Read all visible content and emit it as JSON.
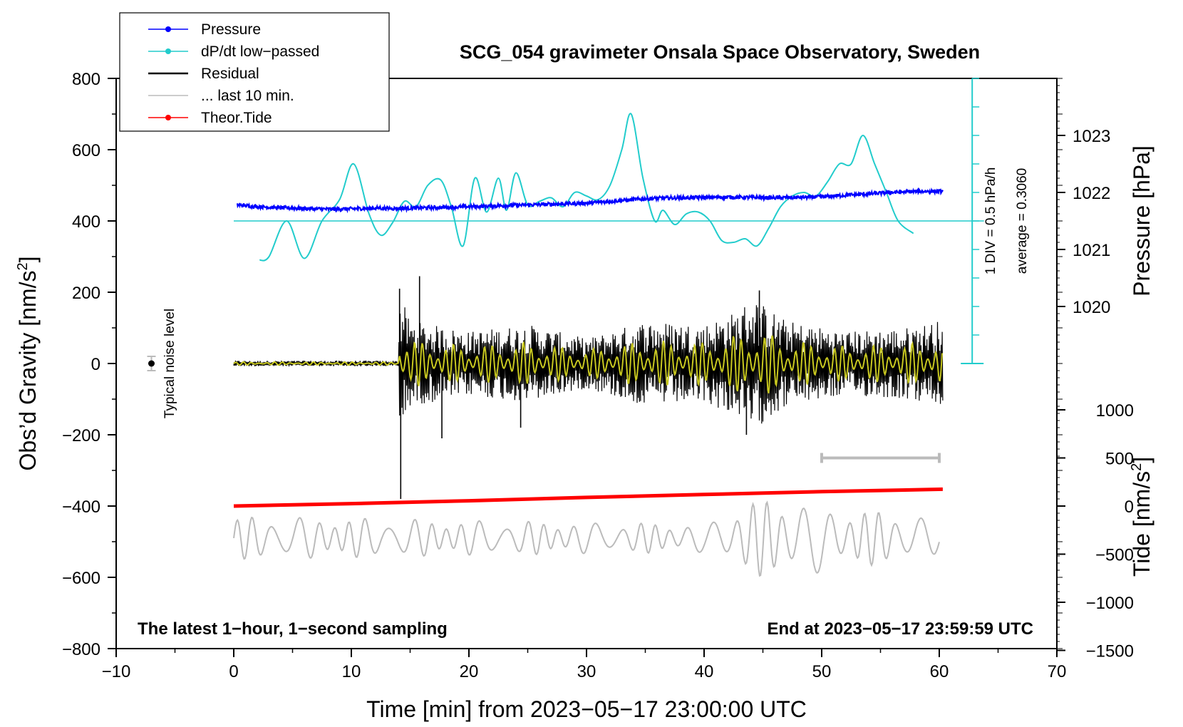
{
  "chart_data": {
    "type": "line",
    "title": "SCG_054 gravimeter Onsala Space Observatory, Sweden",
    "xlabel": "Time [min] from 2023−05−17 23:00:00 UTC",
    "ylabel_main": "Obs’d Gravity [nm/s",
    "ylabel_main_sup": "2",
    "ylabel_main_close": "]",
    "ylabel_pressure": "Pressure [hPa]",
    "ylabel_tide": "Tide [nm/s",
    "ylabel_tide_sup": "2",
    "ylabel_tide_close": "]",
    "xlim": [
      -10,
      70
    ],
    "ylim": [
      -800,
      800
    ],
    "x_ticks": [
      -10,
      0,
      10,
      20,
      30,
      40,
      50,
      60,
      70
    ],
    "x_tick_labels": [
      "−10",
      "0",
      "10",
      "20",
      "30",
      "40",
      "50",
      "60",
      "70"
    ],
    "y_ticks": [
      -800,
      -600,
      -400,
      -200,
      0,
      200,
      400,
      600,
      800
    ],
    "y_tick_labels": [
      "−800",
      "−600",
      "−400",
      "−200",
      "0",
      "200",
      "400",
      "600",
      "800"
    ],
    "pressure_ticks": [
      1020,
      1021,
      1022,
      1023
    ],
    "pressure_tick_labels": [
      "1020",
      "1021",
      "1022",
      "1023"
    ],
    "pressure_ref_gravity": {
      "hpa_1020": 160,
      "hpa_per_div": 160
    },
    "tide_ticks": [
      -1500,
      -1000,
      -500,
      0,
      500,
      1000
    ],
    "tide_tick_labels": [
      "−1500",
      "−1000",
      "−500",
      "0",
      "500",
      "1000"
    ],
    "tide_ref_gravity": {
      "tide_zero": -400,
      "gravity_per_500": 135
    },
    "dpdt_scale_label": "1 DIV = 0.5 hPa/h",
    "dpdt_average_label": "average = 0.3060",
    "dpdt_baseline_gravity": 400,
    "noise_label": "Typical noise level",
    "noise_point": {
      "x": -7,
      "y": 0,
      "err": 20
    },
    "last10_bar": {
      "x_start": 50,
      "x_end": 60,
      "tide_value": 500
    },
    "bottom_left_note": "The latest 1−hour, 1−second sampling",
    "bottom_right_note": "End at 2023−05−17 23:59:59 UTC",
    "legend": [
      {
        "label": "Pressure",
        "color": "#0000ff",
        "marker": true
      },
      {
        "label": "dP/dt low−passed",
        "color": "#22cccc",
        "marker": true
      },
      {
        "label": "Residual",
        "color": "#000000",
        "marker": false
      },
      {
        "label": "... last 10 min.",
        "color": "#bbbbbb",
        "marker": false
      },
      {
        "label": "Theor.Tide",
        "color": "#ff0000",
        "marker": true
      }
    ],
    "series": [
      {
        "name": "Pressure",
        "color": "#0000ff",
        "unit": "gravity-axis",
        "x": [
          0.3,
          2,
          4,
          6,
          8,
          10,
          12,
          14,
          16,
          18,
          20,
          22,
          24,
          26,
          28,
          30,
          32,
          34,
          36,
          38,
          40,
          42,
          44,
          46,
          48,
          50,
          52,
          54,
          56,
          58,
          60.3
        ],
        "values": [
          445,
          440,
          437,
          435,
          433,
          434,
          436,
          435,
          437,
          438,
          440,
          442,
          444,
          446,
          448,
          450,
          455,
          460,
          464,
          465,
          466,
          467,
          466,
          465,
          466,
          468,
          472,
          476,
          480,
          483,
          483
        ]
      },
      {
        "name": "dP/dt low-passed",
        "color": "#22cccc",
        "unit": "gravity-axis",
        "x": [
          2.2,
          3,
          4.5,
          6,
          7.5,
          9,
          10.2,
          11.5,
          12.5,
          13.5,
          14.5,
          15.5,
          16.5,
          17.6,
          18.5,
          19.5,
          20.5,
          21.5,
          22.5,
          23.2,
          24,
          25,
          26,
          27,
          28,
          29,
          30,
          31,
          32,
          33,
          33.8,
          34.8,
          35.8,
          36.5,
          37.5,
          38.5,
          39.5,
          40.5,
          41.5,
          42.5,
          43.5,
          44.5,
          45.5,
          46.5,
          47.5,
          48.5,
          49.5,
          50.5,
          51.5,
          52.5,
          53.5,
          54.5,
          55.5,
          56.5,
          57.8
        ],
        "values": [
          290,
          300,
          400,
          295,
          400,
          460,
          560,
          420,
          360,
          395,
          455,
          440,
          500,
          515,
          440,
          330,
          520,
          425,
          520,
          430,
          535,
          445,
          455,
          465,
          440,
          480,
          470,
          460,
          500,
          600,
          700,
          520,
          400,
          430,
          390,
          420,
          425,
          400,
          345,
          340,
          350,
          330,
          380,
          440,
          470,
          480,
          470,
          510,
          560,
          560,
          640,
          560,
          480,
          400,
          365
        ]
      },
      {
        "name": "Residual",
        "color": "#000000",
        "unit": "gravity-axis",
        "x_start": 0,
        "x_end": 60.3,
        "envelope": [
          [
            0,
            8
          ],
          [
            14,
            8
          ],
          [
            14.1,
            200
          ],
          [
            14.3,
            180
          ],
          [
            15,
            120
          ],
          [
            20,
            90
          ],
          [
            25,
            110
          ],
          [
            30,
            70
          ],
          [
            35,
            120
          ],
          [
            40,
            110
          ],
          [
            43,
            150
          ],
          [
            44,
            190
          ],
          [
            47,
            120
          ],
          [
            52,
            90
          ],
          [
            57,
            100
          ],
          [
            60,
            120
          ]
        ],
        "spikes": [
          {
            "x": 14.2,
            "y": -380
          },
          {
            "x": 14.1,
            "y": 210
          },
          {
            "x": 15.8,
            "y": 245
          },
          {
            "x": 17.7,
            "y": -210
          },
          {
            "x": 24.4,
            "y": -180
          },
          {
            "x": 43.6,
            "y": -200
          },
          {
            "x": 44.7,
            "y": 205
          }
        ]
      },
      {
        "name": "Residual filtered",
        "color": "#c8c820",
        "unit": "gravity-axis",
        "x_start": 0,
        "x_end": 60.3
      },
      {
        "name": "Theor.Tide",
        "color": "#ff0000",
        "unit": "tide-axis",
        "x": [
          0,
          10,
          20,
          30,
          40,
          50,
          60.3
        ],
        "values": [
          0,
          25,
          55,
          90,
          120,
          150,
          175
        ]
      },
      {
        "name": "... last 10 min.",
        "color": "#bbbbbb",
        "unit": "gravity-axis",
        "x_start": 0,
        "x_end": 60,
        "center": -490,
        "amplitude_env": [
          [
            0,
            60
          ],
          [
            5,
            60
          ],
          [
            20,
            50
          ],
          [
            30,
            45
          ],
          [
            40,
            40
          ],
          [
            43,
            90
          ],
          [
            45,
            110
          ],
          [
            48,
            110
          ],
          [
            52,
            80
          ],
          [
            58,
            70
          ],
          [
            60,
            40
          ]
        ]
      }
    ]
  }
}
